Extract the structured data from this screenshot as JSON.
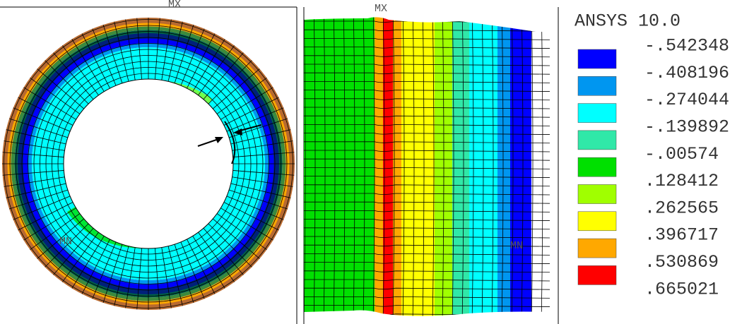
{
  "legend": {
    "title": "ANSYS 10.0",
    "values": [
      "-.542348",
      "-.408196",
      "-.274044",
      "-.139892",
      "-.00574",
      ".128412",
      ".262565",
      ".396717",
      ".530869",
      ".665021"
    ],
    "colors": [
      "#0000ff",
      "#0096f0",
      "#00ffff",
      "#30e8a8",
      "#00e000",
      "#a0ff00",
      "#ffff00",
      "#ffa800",
      "#ff0000"
    ]
  },
  "left_view": {
    "labels": [
      "MX",
      "MN"
    ]
  },
  "right_view": {
    "labels": [
      "MX",
      "MN"
    ]
  }
}
